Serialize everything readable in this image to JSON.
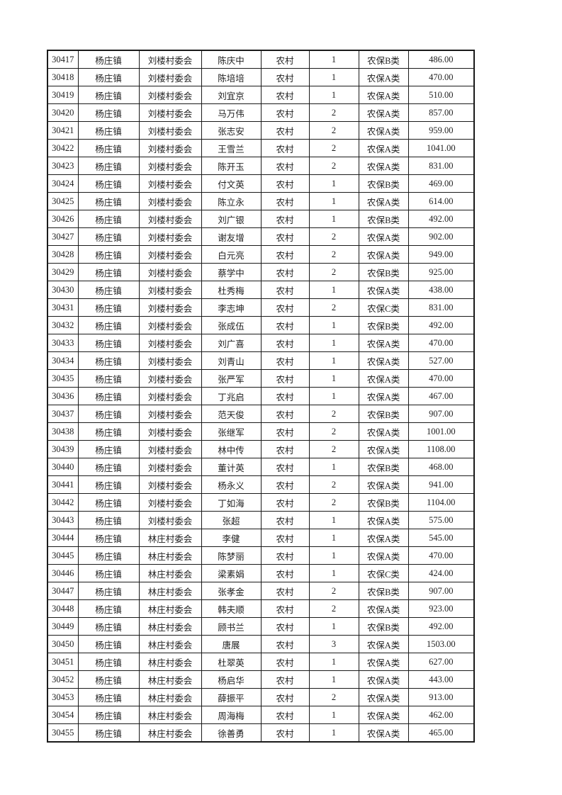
{
  "page": {
    "background": "#ffffff"
  },
  "colors": {
    "table_border": "#1a1a1a",
    "text": "#1f1f1f"
  },
  "table": {
    "rows": [
      [
        "30417",
        "杨庄镇",
        "刘楼村委会",
        "陈庆中",
        "农村",
        "1",
        "农保B类",
        "486.00"
      ],
      [
        "30418",
        "杨庄镇",
        "刘楼村委会",
        "陈培培",
        "农村",
        "1",
        "农保A类",
        "470.00"
      ],
      [
        "30419",
        "杨庄镇",
        "刘楼村委会",
        "刘宜京",
        "农村",
        "1",
        "农保A类",
        "510.00"
      ],
      [
        "30420",
        "杨庄镇",
        "刘楼村委会",
        "马万伟",
        "农村",
        "2",
        "农保A类",
        "857.00"
      ],
      [
        "30421",
        "杨庄镇",
        "刘楼村委会",
        "张志安",
        "农村",
        "2",
        "农保A类",
        "959.00"
      ],
      [
        "30422",
        "杨庄镇",
        "刘楼村委会",
        "王雪兰",
        "农村",
        "2",
        "农保A类",
        "1041.00"
      ],
      [
        "30423",
        "杨庄镇",
        "刘楼村委会",
        "陈开玉",
        "农村",
        "2",
        "农保A类",
        "831.00"
      ],
      [
        "30424",
        "杨庄镇",
        "刘楼村委会",
        "付文英",
        "农村",
        "1",
        "农保B类",
        "469.00"
      ],
      [
        "30425",
        "杨庄镇",
        "刘楼村委会",
        "陈立永",
        "农村",
        "1",
        "农保A类",
        "614.00"
      ],
      [
        "30426",
        "杨庄镇",
        "刘楼村委会",
        "刘广银",
        "农村",
        "1",
        "农保B类",
        "492.00"
      ],
      [
        "30427",
        "杨庄镇",
        "刘楼村委会",
        "谢友增",
        "农村",
        "2",
        "农保A类",
        "902.00"
      ],
      [
        "30428",
        "杨庄镇",
        "刘楼村委会",
        "白元亮",
        "农村",
        "2",
        "农保A类",
        "949.00"
      ],
      [
        "30429",
        "杨庄镇",
        "刘楼村委会",
        "蔡学中",
        "农村",
        "2",
        "农保B类",
        "925.00"
      ],
      [
        "30430",
        "杨庄镇",
        "刘楼村委会",
        "杜秀梅",
        "农村",
        "1",
        "农保A类",
        "438.00"
      ],
      [
        "30431",
        "杨庄镇",
        "刘楼村委会",
        "李志坤",
        "农村",
        "2",
        "农保C类",
        "831.00"
      ],
      [
        "30432",
        "杨庄镇",
        "刘楼村委会",
        "张成伍",
        "农村",
        "1",
        "农保B类",
        "492.00"
      ],
      [
        "30433",
        "杨庄镇",
        "刘楼村委会",
        "刘广喜",
        "农村",
        "1",
        "农保A类",
        "470.00"
      ],
      [
        "30434",
        "杨庄镇",
        "刘楼村委会",
        "刘青山",
        "农村",
        "1",
        "农保A类",
        "527.00"
      ],
      [
        "30435",
        "杨庄镇",
        "刘楼村委会",
        "张严军",
        "农村",
        "1",
        "农保A类",
        "470.00"
      ],
      [
        "30436",
        "杨庄镇",
        "刘楼村委会",
        "丁兆启",
        "农村",
        "1",
        "农保A类",
        "467.00"
      ],
      [
        "30437",
        "杨庄镇",
        "刘楼村委会",
        "范天俊",
        "农村",
        "2",
        "农保B类",
        "907.00"
      ],
      [
        "30438",
        "杨庄镇",
        "刘楼村委会",
        "张继军",
        "农村",
        "2",
        "农保A类",
        "1001.00"
      ],
      [
        "30439",
        "杨庄镇",
        "刘楼村委会",
        "林中传",
        "农村",
        "2",
        "农保A类",
        "1108.00"
      ],
      [
        "30440",
        "杨庄镇",
        "刘楼村委会",
        "董计英",
        "农村",
        "1",
        "农保B类",
        "468.00"
      ],
      [
        "30441",
        "杨庄镇",
        "刘楼村委会",
        "杨永义",
        "农村",
        "2",
        "农保A类",
        "941.00"
      ],
      [
        "30442",
        "杨庄镇",
        "刘楼村委会",
        "丁如海",
        "农村",
        "2",
        "农保B类",
        "1104.00"
      ],
      [
        "30443",
        "杨庄镇",
        "刘楼村委会",
        "张超",
        "农村",
        "1",
        "农保A类",
        "575.00"
      ],
      [
        "30444",
        "杨庄镇",
        "林庄村委会",
        "李健",
        "农村",
        "1",
        "农保A类",
        "545.00"
      ],
      [
        "30445",
        "杨庄镇",
        "林庄村委会",
        "陈梦丽",
        "农村",
        "1",
        "农保A类",
        "470.00"
      ],
      [
        "30446",
        "杨庄镇",
        "林庄村委会",
        "梁素娟",
        "农村",
        "1",
        "农保C类",
        "424.00"
      ],
      [
        "30447",
        "杨庄镇",
        "林庄村委会",
        "张孝金",
        "农村",
        "2",
        "农保B类",
        "907.00"
      ],
      [
        "30448",
        "杨庄镇",
        "林庄村委会",
        "韩夫顺",
        "农村",
        "2",
        "农保A类",
        "923.00"
      ],
      [
        "30449",
        "杨庄镇",
        "林庄村委会",
        "顾书兰",
        "农村",
        "1",
        "农保B类",
        "492.00"
      ],
      [
        "30450",
        "杨庄镇",
        "林庄村委会",
        "唐展",
        "农村",
        "3",
        "农保A类",
        "1503.00"
      ],
      [
        "30451",
        "杨庄镇",
        "林庄村委会",
        "杜翠英",
        "农村",
        "1",
        "农保A类",
        "627.00"
      ],
      [
        "30452",
        "杨庄镇",
        "林庄村委会",
        "杨启华",
        "农村",
        "1",
        "农保A类",
        "443.00"
      ],
      [
        "30453",
        "杨庄镇",
        "林庄村委会",
        "薛振平",
        "农村",
        "2",
        "农保A类",
        "913.00"
      ],
      [
        "30454",
        "杨庄镇",
        "林庄村委会",
        "周海梅",
        "农村",
        "1",
        "农保A类",
        "462.00"
      ],
      [
        "30455",
        "杨庄镇",
        "林庄村委会",
        "徐善勇",
        "农村",
        "1",
        "农保A类",
        "465.00"
      ]
    ]
  }
}
